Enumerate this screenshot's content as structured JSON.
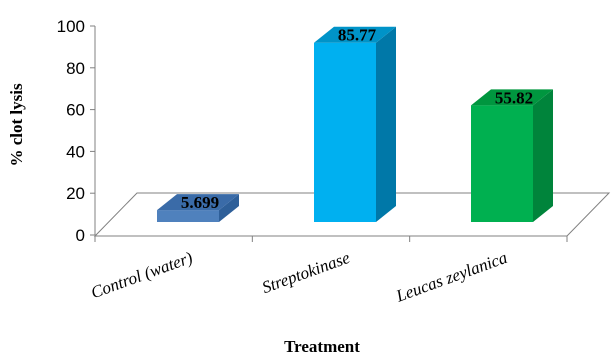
{
  "chart_data": {
    "type": "bar",
    "style": "3d-column",
    "categories": [
      "Control (water)",
      "Streptokinase",
      "Leucas zeylanica"
    ],
    "values": [
      5.699,
      85.77,
      55.82
    ],
    "value_labels": [
      "5.699",
      "85.77",
      "55.82"
    ],
    "xlabel": "Treatment",
    "ylabel": "% clot lysis",
    "ylim": [
      0,
      100
    ],
    "yticks": [
      "0",
      "20",
      "40",
      "60",
      "80",
      "100"
    ],
    "grid": false,
    "legend": "none",
    "colors": {
      "bars": [
        "#4F81BD",
        "#00B0F0",
        "#00B050"
      ],
      "bar_sides": [
        "#2E5F99",
        "#0078A8",
        "#00843B"
      ],
      "bar_tops": [
        "#3A6BA8",
        "#0093C8",
        "#00963F"
      ],
      "axis": "#808080"
    }
  }
}
